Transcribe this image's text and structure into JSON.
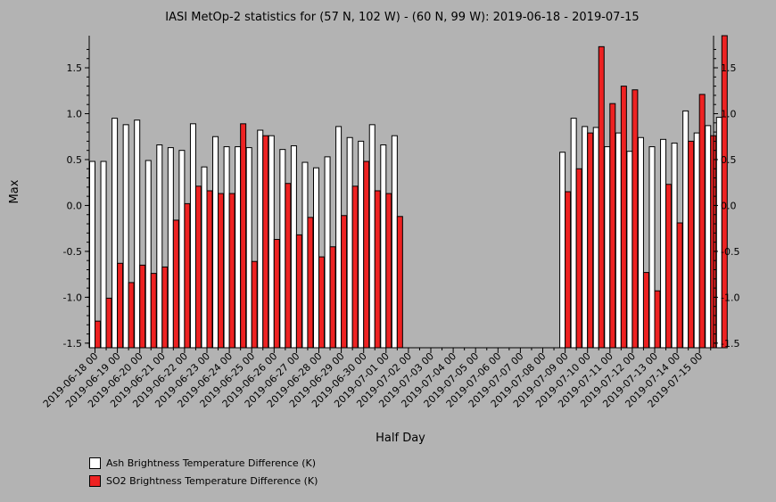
{
  "chart_data": {
    "type": "bar",
    "title": "IASI MetOp-2 statistics for (57 N, 102 W) - (60 N, 99 W): 2019-06-18 - 2019-07-15",
    "xlabel": "Half Day",
    "ylabel": "Max",
    "ylim": [
      -1.55,
      1.85
    ],
    "y_ticks": [
      -1.5,
      -1.0,
      -0.5,
      0.0,
      0.5,
      1.0,
      1.5
    ],
    "y_tick_labels": [
      "-1.5",
      "-1.0",
      "-0.5",
      "0.0",
      "0.5",
      "1.0",
      "1.5"
    ],
    "x_tick_labels": [
      "2019-06-18 00",
      "2019-06-19 00",
      "2019-06-20 00",
      "2019-06-21 00",
      "2019-06-22 00",
      "2019-06-23 00",
      "2019-06-24 00",
      "2019-06-25 00",
      "2019-06-26 00",
      "2019-06-27 00",
      "2019-06-28 00",
      "2019-06-29 00",
      "2019-06-30 00",
      "2019-07-01 00",
      "2019-07-02 00",
      "2019-07-03 00",
      "2019-07-04 00",
      "2019-07-05 00",
      "2019-07-06 00",
      "2019-07-07 00",
      "2019-07-08 00",
      "2019-07-09 00",
      "2019-07-10 00",
      "2019-07-11 00",
      "2019-07-12 00",
      "2019-07-13 00",
      "2019-07-14 00",
      "2019-07-15 00"
    ],
    "grid": false,
    "legend_position": "bottom-left",
    "series": [
      {
        "name": "Ash Brightness Temperature Difference (K)",
        "color": "#ffffff",
        "values": [
          0.48,
          0.48,
          0.95,
          0.88,
          0.93,
          0.49,
          0.66,
          0.63,
          0.6,
          0.89,
          0.42,
          0.75,
          0.64,
          0.64,
          0.63,
          0.82,
          0.76,
          0.61,
          0.65,
          0.47,
          0.41,
          0.53,
          0.86,
          0.74,
          0.7,
          0.88,
          0.66,
          0.76,
          null,
          null,
          null,
          null,
          null,
          null,
          null,
          null,
          null,
          null,
          null,
          null,
          null,
          null,
          0.58,
          0.95,
          0.86,
          0.85,
          0.64,
          0.79,
          0.59,
          0.74,
          0.64,
          0.72,
          0.68,
          1.03,
          0.79,
          0.87,
          0.96
        ]
      },
      {
        "name": "SO2 Brightness Temperature Difference (K)",
        "color": "#ee2222",
        "values": [
          -1.26,
          -1.01,
          -0.63,
          -0.84,
          -0.65,
          -0.74,
          -0.67,
          -0.16,
          0.02,
          0.21,
          0.16,
          0.13,
          0.13,
          0.89,
          -0.61,
          0.76,
          -0.37,
          0.24,
          -0.32,
          -0.13,
          -0.56,
          -0.45,
          -0.11,
          0.21,
          0.48,
          0.16,
          0.13,
          -0.12,
          null,
          null,
          null,
          null,
          null,
          null,
          null,
          null,
          null,
          null,
          null,
          null,
          null,
          null,
          0.15,
          0.4,
          0.79,
          1.73,
          1.11,
          1.3,
          1.26,
          -0.73,
          -0.93,
          0.23,
          -0.19,
          0.7,
          1.21,
          0.76,
          1.85
        ]
      }
    ]
  }
}
